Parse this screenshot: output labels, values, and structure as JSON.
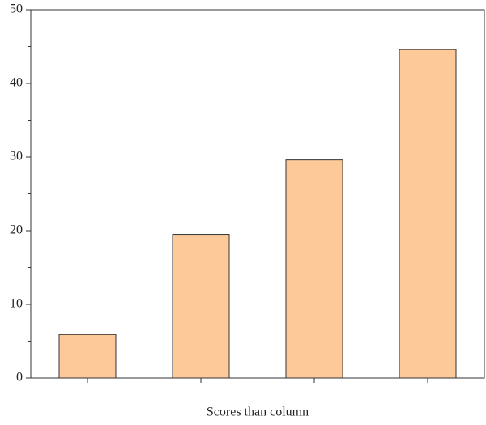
{
  "chart_data": {
    "type": "bar",
    "xlabel": "Scores than column",
    "categories": [
      null,
      null,
      null,
      null
    ],
    "values": [
      5.9,
      19.5,
      29.6,
      44.6
    ],
    "color": "#fdc998",
    "ylim": [
      0,
      50
    ],
    "yticks": [
      0,
      10,
      20,
      30,
      40,
      50
    ],
    "yminorticks": [
      5,
      15,
      25,
      35,
      45
    ],
    "grid": false
  }
}
